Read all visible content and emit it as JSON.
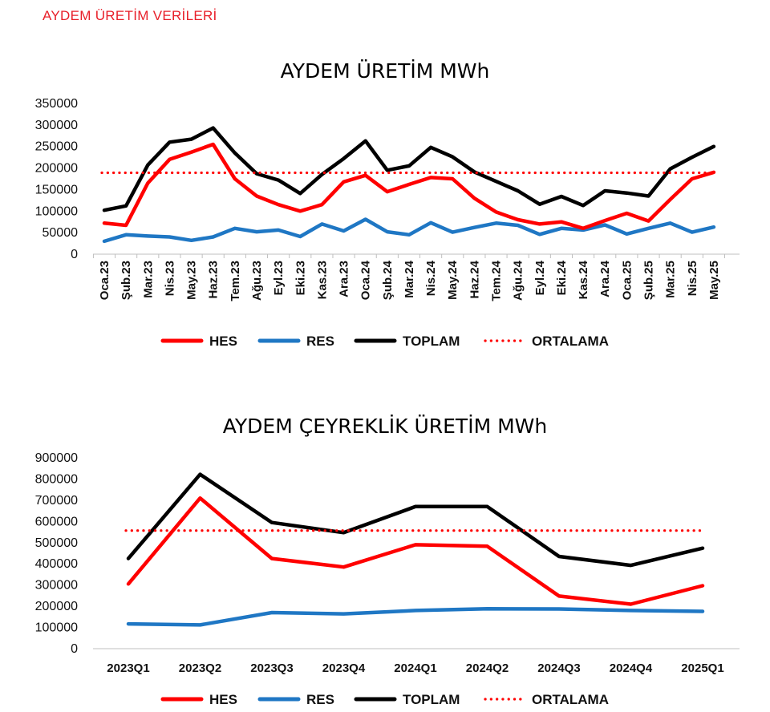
{
  "page": {
    "header": "AYDEM ÜRETİM VERİLERİ"
  },
  "chart_data": [
    {
      "type": "line",
      "title": "AYDEM ÜRETİM MWh",
      "xlabel": "",
      "ylabel": "",
      "ylim": [
        0,
        350000
      ],
      "yticks": [
        "350000",
        "300000",
        "250000",
        "200000",
        "150000",
        "100000",
        "50000",
        "0"
      ],
      "ytick_values": [
        350000,
        300000,
        250000,
        200000,
        150000,
        100000,
        50000,
        0
      ],
      "categories": [
        "Oca.23",
        "Şub.23",
        "Mar.23",
        "Nis.23",
        "May.23",
        "Haz.23",
        "Tem.23",
        "Ağu.23",
        "Eyl.23",
        "Eki.23",
        "Kas.23",
        "Ara.23",
        "Oca.24",
        "Şub.24",
        "Mar.24",
        "Nis.24",
        "May.24",
        "Haz.24",
        "Tem.24",
        "Ağu.24",
        "Eyl.24",
        "Eki.24",
        "Kas.24",
        "Ara.24",
        "Oca.25",
        "Şub.25",
        "Mar.25",
        "Nis.25",
        "May.25"
      ],
      "series": [
        {
          "name": "HES",
          "color": "#ff0000",
          "style": "solid",
          "values": [
            72000,
            67000,
            165000,
            220000,
            237000,
            255000,
            175000,
            135000,
            115000,
            100000,
            115000,
            168000,
            183000,
            145000,
            162000,
            178000,
            175000,
            130000,
            98000,
            80000,
            70000,
            75000,
            60000,
            78000,
            95000,
            77000,
            127000,
            175000,
            190000
          ]
        },
        {
          "name": "RES",
          "color": "#1f77c4",
          "style": "solid",
          "values": [
            30000,
            45000,
            42000,
            40000,
            32000,
            40000,
            60000,
            52000,
            56000,
            41000,
            70000,
            54000,
            81000,
            52000,
            45000,
            73000,
            51000,
            62000,
            72000,
            67000,
            46000,
            60000,
            56000,
            68000,
            47000,
            60000,
            72000,
            51000,
            63000
          ]
        },
        {
          "name": "TOPLAM",
          "color": "#000000",
          "style": "solid",
          "values": [
            102000,
            112000,
            207000,
            260000,
            267000,
            293000,
            235000,
            187000,
            172000,
            141000,
            185000,
            222000,
            263000,
            195000,
            205000,
            248000,
            226000,
            191000,
            169000,
            147000,
            116000,
            134000,
            113000,
            147000,
            142000,
            135000,
            198000,
            225000,
            250000
          ]
        },
        {
          "name": "ORTALAMA",
          "color": "#ff0000",
          "style": "dotted",
          "values": [
            189000,
            189000,
            189000,
            189000,
            189000,
            189000,
            189000,
            189000,
            189000,
            189000,
            189000,
            189000,
            189000,
            189000,
            189000,
            189000,
            189000,
            189000,
            189000,
            189000,
            189000,
            189000,
            189000,
            189000,
            189000,
            189000,
            189000,
            189000,
            189000
          ]
        }
      ],
      "legend": "bottom",
      "grid": false
    },
    {
      "type": "line",
      "title": "AYDEM ÇEYREKLİK ÜRETİM MWh",
      "xlabel": "",
      "ylabel": "",
      "ylim": [
        0,
        900000
      ],
      "yticks": [
        "900000",
        "800000",
        "700000",
        "600000",
        "500000",
        "400000",
        "300000",
        "200000",
        "100000",
        "0"
      ],
      "ytick_values": [
        900000,
        800000,
        700000,
        600000,
        500000,
        400000,
        300000,
        200000,
        100000,
        0
      ],
      "categories": [
        "2023Q1",
        "2023Q2",
        "2023Q3",
        "2023Q4",
        "2024Q1",
        "2024Q2",
        "2024Q3",
        "2024Q4",
        "2025Q1"
      ],
      "series": [
        {
          "name": "HES",
          "color": "#ff0000",
          "style": "solid",
          "values": [
            305000,
            710000,
            425000,
            385000,
            490000,
            483000,
            248000,
            210000,
            297000
          ]
        },
        {
          "name": "RES",
          "color": "#1f77c4",
          "style": "solid",
          "values": [
            117000,
            112000,
            170000,
            164000,
            180000,
            188000,
            187000,
            180000,
            176000
          ]
        },
        {
          "name": "TOPLAM",
          "color": "#000000",
          "style": "solid",
          "values": [
            425000,
            822000,
            595000,
            547000,
            670000,
            670000,
            435000,
            393000,
            474000
          ]
        },
        {
          "name": "ORTALAMA",
          "color": "#ff0000",
          "style": "dotted",
          "values": [
            557000,
            557000,
            557000,
            557000,
            557000,
            557000,
            557000,
            557000,
            557000
          ]
        }
      ],
      "legend": "bottom",
      "grid": false
    }
  ]
}
